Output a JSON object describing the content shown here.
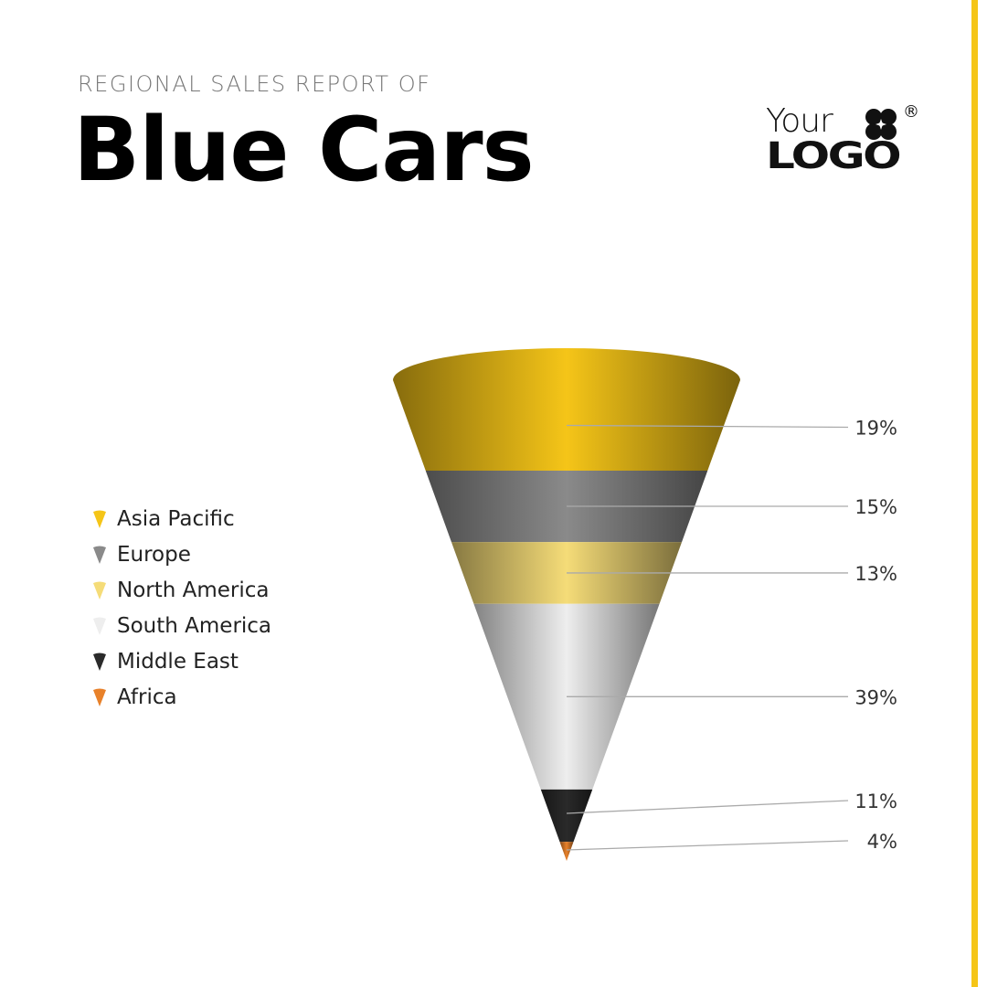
{
  "header": {
    "subtitle": "REGIONAL SALES REPORT OF",
    "title": "Blue Cars"
  },
  "logo": {
    "line1": "Your",
    "line2": "LOGO",
    "mark": "®"
  },
  "accent": "#f5c518",
  "chart_data": {
    "type": "funnel",
    "title": "Blue Cars",
    "categories": [
      "Asia Pacific",
      "Europe",
      "North America",
      "South America",
      "Middle East",
      "Africa"
    ],
    "values": [
      19,
      15,
      13,
      39,
      11,
      4
    ],
    "labels": [
      "19%",
      "15%",
      "13%",
      "39%",
      "11%",
      "4%"
    ],
    "colors": [
      "#f5c518",
      "#8a8a8a",
      "#f5dc78",
      "#eeeeee",
      "#2a2a2a",
      "#e8812a"
    ],
    "legend_position": "left"
  }
}
